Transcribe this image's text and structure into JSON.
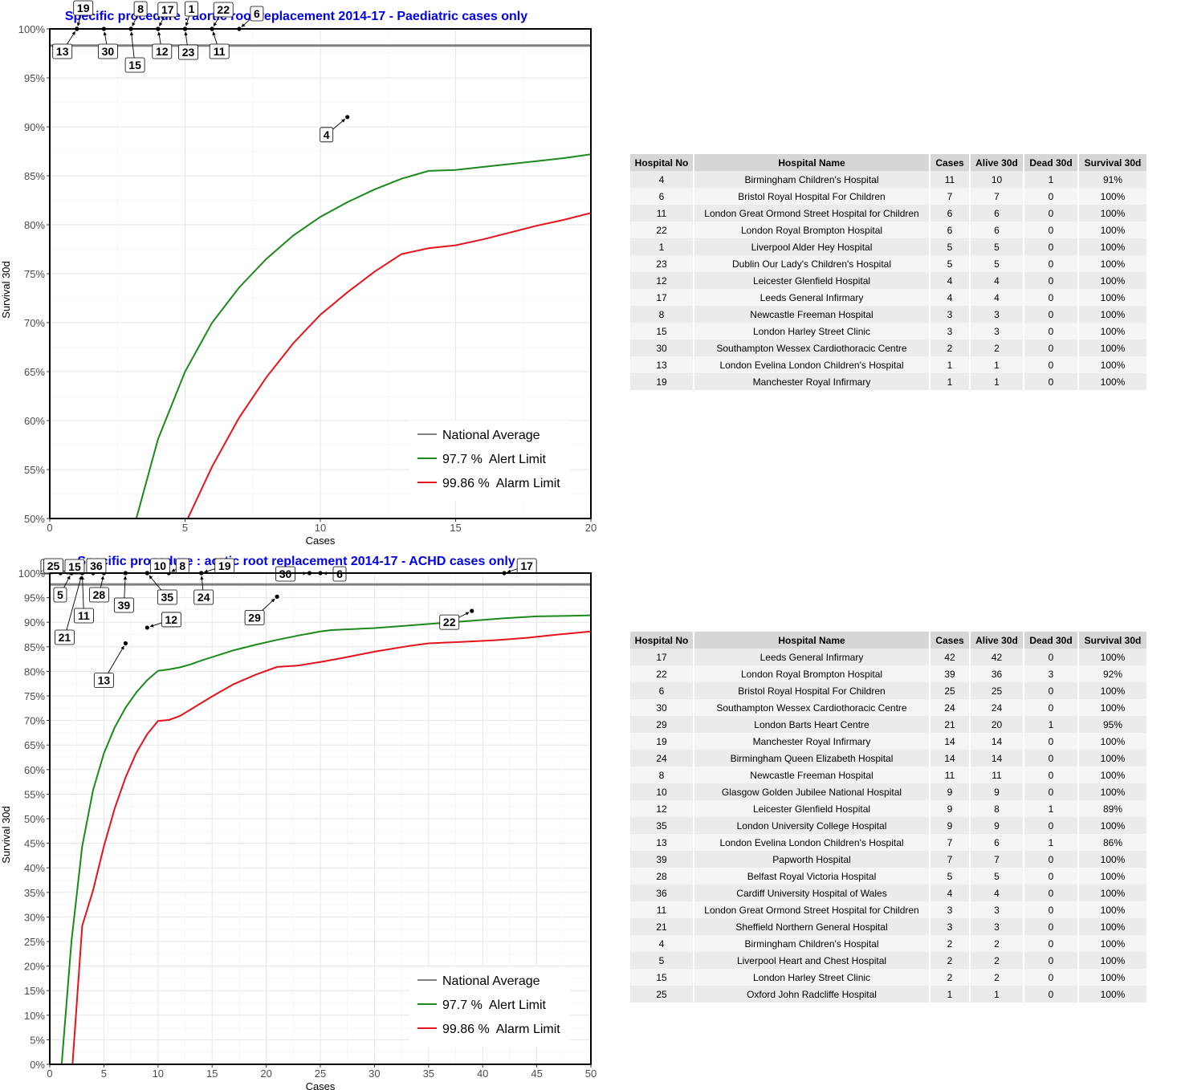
{
  "chart_data": [
    {
      "type": "line",
      "title": "Specific procedure : aortic root replacement 2014-17 - Paediatric cases only",
      "xlabel": "Cases",
      "ylabel": "Survival 30d",
      "xlim": [
        0,
        20
      ],
      "ylim": [
        50,
        100
      ],
      "x_ticks": [
        0,
        5,
        10,
        15,
        20
      ],
      "y_ticks": [
        50,
        55,
        60,
        65,
        70,
        75,
        80,
        85,
        90,
        95,
        100
      ],
      "grid": true,
      "legend_position": "bottom-right",
      "national_average": 98.3,
      "legend": [
        {
          "label": "National Average",
          "color": "#808080"
        },
        {
          "label": "97.7 %  Alert Limit",
          "color": "#1a8a1a"
        },
        {
          "label": "99.86 %  Alarm Limit",
          "color": "#e8121a"
        }
      ],
      "series": [
        {
          "name": "97.7 %  Alert Limit",
          "color": "#1a8a1a",
          "x": [
            3.2,
            4,
            5,
            6,
            7,
            8,
            9,
            10,
            11,
            12,
            13,
            14,
            15,
            16,
            17,
            18,
            19,
            20
          ],
          "y": [
            50,
            58.1,
            65,
            70,
            73.6,
            76.5,
            78.9,
            80.8,
            82.3,
            83.6,
            84.7,
            85.5,
            85.6,
            85.9,
            86.2,
            86.5,
            86.8,
            87.2
          ]
        },
        {
          "name": "99.86 %  Alarm Limit",
          "color": "#e8121a",
          "x": [
            5.1,
            6,
            7,
            8,
            9,
            10,
            11,
            12,
            13,
            14,
            15,
            16,
            17,
            18,
            19,
            20
          ],
          "y": [
            50,
            55.3,
            60.3,
            64.4,
            67.9,
            70.8,
            73.1,
            75.2,
            77,
            77.6,
            77.9,
            78.5,
            79.2,
            79.9,
            80.5,
            81.2
          ]
        }
      ],
      "points": [
        {
          "label": "4",
          "x": 11,
          "y": 91
        },
        {
          "label": "6",
          "x": 7,
          "y": 100
        },
        {
          "label": "11",
          "x": 6,
          "y": 100
        },
        {
          "label": "22",
          "x": 6,
          "y": 100
        },
        {
          "label": "1",
          "x": 5,
          "y": 100
        },
        {
          "label": "23",
          "x": 5,
          "y": 100
        },
        {
          "label": "12",
          "x": 4,
          "y": 100
        },
        {
          "label": "17",
          "x": 4,
          "y": 100
        },
        {
          "label": "8",
          "x": 3,
          "y": 100
        },
        {
          "label": "15",
          "x": 3,
          "y": 100
        },
        {
          "label": "30",
          "x": 2,
          "y": 100
        },
        {
          "label": "13",
          "x": 1,
          "y": 100
        },
        {
          "label": "19",
          "x": 1,
          "y": 100
        }
      ]
    },
    {
      "type": "line",
      "title": "Specific procedure : aortic root replacement 2014-17 - ACHD cases only",
      "xlabel": "Cases",
      "ylabel": "Survival 30d",
      "xlim": [
        0,
        50
      ],
      "ylim": [
        0,
        100
      ],
      "x_ticks": [
        0,
        5,
        10,
        15,
        20,
        25,
        30,
        35,
        40,
        45,
        50
      ],
      "y_ticks": [
        0,
        5,
        10,
        15,
        20,
        25,
        30,
        35,
        40,
        45,
        50,
        55,
        60,
        65,
        70,
        75,
        80,
        85,
        90,
        95,
        100
      ],
      "grid": true,
      "legend_position": "bottom-right",
      "national_average": 97.7,
      "legend": [
        {
          "label": "National Average",
          "color": "#808080"
        },
        {
          "label": "97.7 %  Alert Limit",
          "color": "#1a8a1a"
        },
        {
          "label": "99.86 %  Alarm Limit",
          "color": "#e8121a"
        }
      ],
      "series": [
        {
          "name": "97.7 %  Alert Limit",
          "color": "#1a8a1a",
          "x": [
            1.1,
            2,
            3,
            4,
            5,
            6,
            7,
            8,
            9,
            10,
            11,
            12,
            13,
            14,
            15,
            17,
            19,
            21,
            23,
            25,
            26,
            27,
            30,
            33,
            36,
            39,
            42,
            45,
            48,
            50
          ],
          "y": [
            0,
            25,
            44.4,
            55.8,
            63.3,
            68.6,
            72.6,
            75.7,
            78.2,
            80.1,
            80.4,
            80.8,
            81.4,
            82.2,
            82.9,
            84.3,
            85.4,
            86.4,
            87.3,
            88.1,
            88.4,
            88.5,
            88.8,
            89.3,
            89.8,
            90.3,
            90.8,
            91.2,
            91.3,
            91.4
          ]
        },
        {
          "name": "99.86 %  Alarm Limit",
          "color": "#e8121a",
          "x": [
            2.1,
            3,
            4,
            5,
            6,
            7,
            8,
            9,
            10,
            11,
            12,
            13,
            15,
            17,
            19,
            21,
            23,
            25,
            27,
            30,
            33,
            35,
            38,
            41,
            44,
            47,
            50
          ],
          "y": [
            0,
            28.2,
            35.4,
            44.4,
            52.1,
            58.4,
            63.4,
            67.2,
            69.9,
            70.1,
            70.9,
            72.2,
            74.9,
            77.4,
            79.3,
            80.9,
            81.2,
            81.9,
            82.7,
            84,
            85.1,
            85.7,
            86,
            86.3,
            86.8,
            87.5,
            88.1
          ]
        }
      ],
      "points": [
        {
          "label": "17",
          "x": 42,
          "y": 100
        },
        {
          "label": "22",
          "x": 39,
          "y": 92.3
        },
        {
          "label": "6",
          "x": 25,
          "y": 100
        },
        {
          "label": "30",
          "x": 24,
          "y": 100
        },
        {
          "label": "29",
          "x": 21,
          "y": 95.2
        },
        {
          "label": "19",
          "x": 14,
          "y": 100
        },
        {
          "label": "24",
          "x": 14,
          "y": 100
        },
        {
          "label": "8",
          "x": 11,
          "y": 100
        },
        {
          "label": "10",
          "x": 9,
          "y": 100
        },
        {
          "label": "12",
          "x": 9,
          "y": 88.9
        },
        {
          "label": "35",
          "x": 9,
          "y": 100
        },
        {
          "label": "13",
          "x": 7,
          "y": 85.7
        },
        {
          "label": "39",
          "x": 7,
          "y": 100
        },
        {
          "label": "28",
          "x": 5,
          "y": 100
        },
        {
          "label": "36",
          "x": 4,
          "y": 100
        },
        {
          "label": "11",
          "x": 3,
          "y": 100
        },
        {
          "label": "21",
          "x": 3,
          "y": 100
        },
        {
          "label": "4",
          "x": 2,
          "y": 100
        },
        {
          "label": "5",
          "x": 2,
          "y": 100
        },
        {
          "label": "15",
          "x": 2,
          "y": 100
        },
        {
          "label": "25",
          "x": 1,
          "y": 100
        }
      ]
    }
  ],
  "tables": [
    {
      "columns": [
        "Hospital No",
        "Hospital Name",
        "Cases",
        "Alive 30d",
        "Dead 30d",
        "Survival 30d"
      ],
      "rows": [
        [
          "4",
          "Birmingham Children's Hospital",
          "11",
          "10",
          "1",
          "91%"
        ],
        [
          "6",
          "Bristol Royal Hospital For Children",
          "7",
          "7",
          "0",
          "100%"
        ],
        [
          "11",
          "London Great Ormond Street Hospital for Children",
          "6",
          "6",
          "0",
          "100%"
        ],
        [
          "22",
          "London Royal Brompton Hospital",
          "6",
          "6",
          "0",
          "100%"
        ],
        [
          "1",
          "Liverpool Alder Hey Hospital",
          "5",
          "5",
          "0",
          "100%"
        ],
        [
          "23",
          "Dublin Our Lady's Children's Hospital",
          "5",
          "5",
          "0",
          "100%"
        ],
        [
          "12",
          "Leicester Glenfield Hospital",
          "4",
          "4",
          "0",
          "100%"
        ],
        [
          "17",
          "Leeds General Infirmary",
          "4",
          "4",
          "0",
          "100%"
        ],
        [
          "8",
          "Newcastle Freeman Hospital",
          "3",
          "3",
          "0",
          "100%"
        ],
        [
          "15",
          "London Harley Street Clinic",
          "3",
          "3",
          "0",
          "100%"
        ],
        [
          "30",
          "Southampton Wessex Cardiothoracic Centre",
          "2",
          "2",
          "0",
          "100%"
        ],
        [
          "13",
          "London Evelina London Children's Hospital",
          "1",
          "1",
          "0",
          "100%"
        ],
        [
          "19",
          "Manchester Royal Infirmary",
          "1",
          "1",
          "0",
          "100%"
        ]
      ]
    },
    {
      "columns": [
        "Hospital No",
        "Hospital Name",
        "Cases",
        "Alive 30d",
        "Dead 30d",
        "Survival 30d"
      ],
      "rows": [
        [
          "17",
          "Leeds General Infirmary",
          "42",
          "42",
          "0",
          "100%"
        ],
        [
          "22",
          "London Royal Brompton Hospital",
          "39",
          "36",
          "3",
          "92%"
        ],
        [
          "6",
          "Bristol Royal Hospital For Children",
          "25",
          "25",
          "0",
          "100%"
        ],
        [
          "30",
          "Southampton Wessex Cardiothoracic Centre",
          "24",
          "24",
          "0",
          "100%"
        ],
        [
          "29",
          "London Barts Heart Centre",
          "21",
          "20",
          "1",
          "95%"
        ],
        [
          "19",
          "Manchester Royal Infirmary",
          "14",
          "14",
          "0",
          "100%"
        ],
        [
          "24",
          "Birmingham Queen Elizabeth Hospital",
          "14",
          "14",
          "0",
          "100%"
        ],
        [
          "8",
          "Newcastle Freeman Hospital",
          "11",
          "11",
          "0",
          "100%"
        ],
        [
          "10",
          "Glasgow Golden Jubilee National Hospital",
          "9",
          "9",
          "0",
          "100%"
        ],
        [
          "12",
          "Leicester Glenfield Hospital",
          "9",
          "8",
          "1",
          "89%"
        ],
        [
          "35",
          "London University College Hospital",
          "9",
          "9",
          "0",
          "100%"
        ],
        [
          "13",
          "London Evelina London Children's Hospital",
          "7",
          "6",
          "1",
          "86%"
        ],
        [
          "39",
          "Papworth Hospital",
          "7",
          "7",
          "0",
          "100%"
        ],
        [
          "28",
          "Belfast Royal Victoria Hospital",
          "5",
          "5",
          "0",
          "100%"
        ],
        [
          "36",
          "Cardiff University Hospital of Wales",
          "4",
          "4",
          "0",
          "100%"
        ],
        [
          "11",
          "London Great Ormond Street Hospital for Children",
          "3",
          "3",
          "0",
          "100%"
        ],
        [
          "21",
          "Sheffield Northern General Hospital",
          "3",
          "3",
          "0",
          "100%"
        ],
        [
          "4",
          "Birmingham Children's Hospital",
          "2",
          "2",
          "0",
          "100%"
        ],
        [
          "5",
          "Liverpool Heart and Chest Hospital",
          "2",
          "2",
          "0",
          "100%"
        ],
        [
          "15",
          "London Harley Street Clinic",
          "2",
          "2",
          "0",
          "100%"
        ],
        [
          "25",
          "Oxford John Radcliffe Hospital",
          "1",
          "1",
          "0",
          "100%"
        ]
      ]
    }
  ]
}
